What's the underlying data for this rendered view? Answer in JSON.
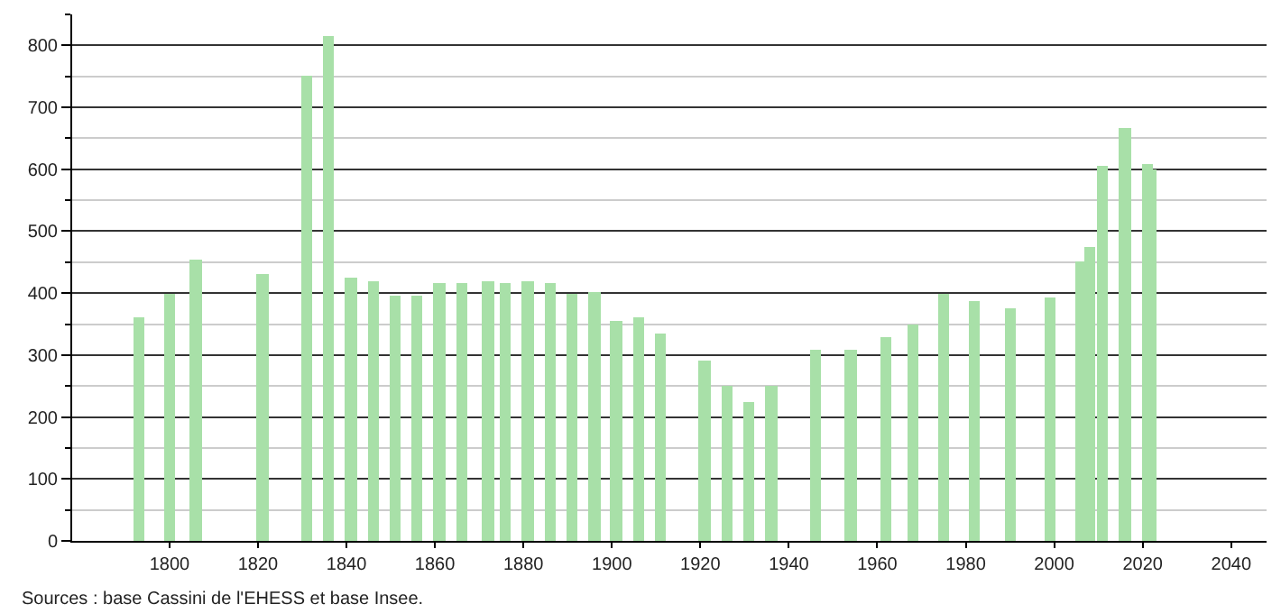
{
  "chart_data": {
    "type": "bar",
    "x": [
      1793,
      1800,
      1806,
      1821,
      1831,
      1836,
      1841,
      1846,
      1851,
      1856,
      1861,
      1866,
      1872,
      1876,
      1881,
      1886,
      1891,
      1896,
      1901,
      1906,
      1911,
      1921,
      1926,
      1931,
      1936,
      1946,
      1954,
      1962,
      1968,
      1975,
      1982,
      1990,
      1999,
      2006,
      2008,
      2011,
      2016,
      2021,
      2022
    ],
    "values": [
      360,
      398,
      455,
      432,
      750,
      815,
      425,
      420,
      395,
      395,
      415,
      415,
      418,
      415,
      418,
      415,
      400,
      402,
      355,
      362,
      335,
      290,
      250,
      225,
      250,
      310,
      308,
      328,
      350,
      400,
      386,
      375,
      392,
      450,
      475,
      605,
      668,
      608,
      600
    ],
    "color": "#a8e0a8",
    "xlim": [
      1778,
      2048
    ],
    "xticks": [
      1800,
      1820,
      1840,
      1860,
      1880,
      1900,
      1920,
      1940,
      1960,
      1980,
      2000,
      2020,
      2040
    ],
    "ylim": [
      0,
      850
    ],
    "yticks": [
      0,
      100,
      200,
      300,
      400,
      500,
      600,
      700,
      800
    ],
    "grid": "y",
    "annotations": [
      "Sources : base Cassini de l'EHESS et base Insee."
    ]
  }
}
